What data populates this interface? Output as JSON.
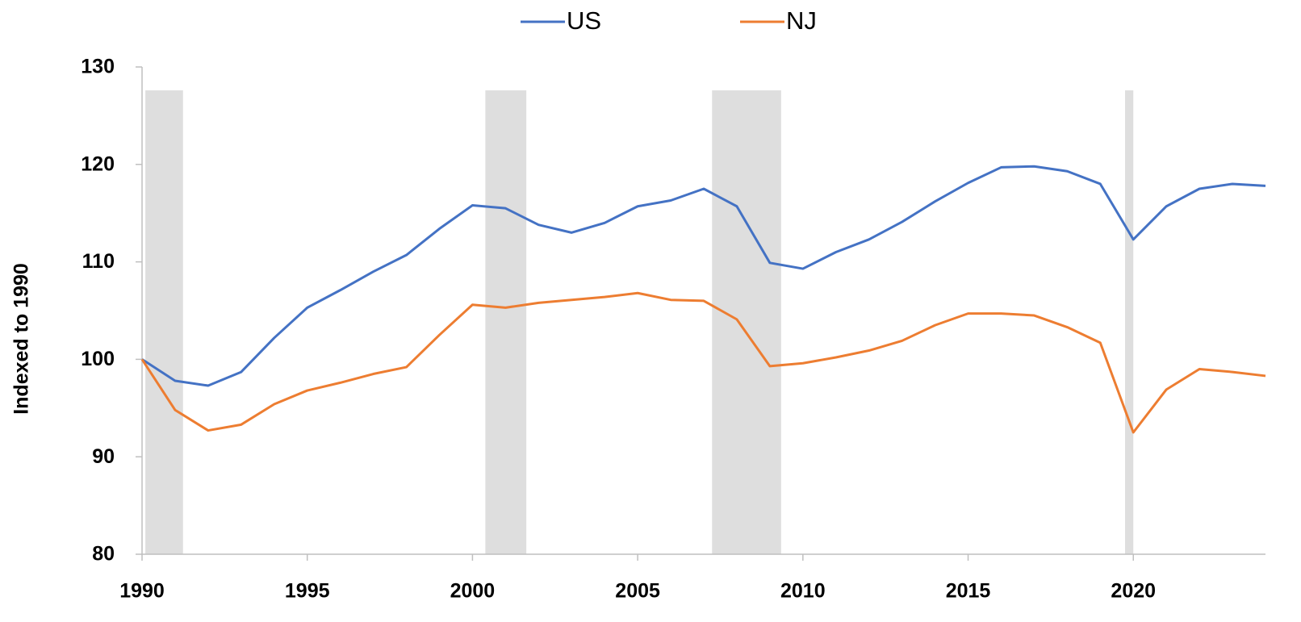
{
  "chart_data": {
    "type": "line",
    "ylabel": "Indexed to 1990",
    "x": [
      1990,
      1991,
      1992,
      1993,
      1994,
      1995,
      1996,
      1997,
      1998,
      1999,
      2000,
      2001,
      2002,
      2003,
      2004,
      2005,
      2006,
      2007,
      2008,
      2009,
      2010,
      2011,
      2012,
      2013,
      2014,
      2015,
      2016,
      2017,
      2018,
      2019,
      2020,
      2021,
      2022,
      2023,
      2024
    ],
    "series": [
      {
        "name": "US",
        "color": "#4472c4",
        "values": [
          100,
          97.8,
          97.3,
          98.7,
          102.2,
          105.3,
          107.1,
          109.0,
          110.7,
          113.4,
          115.8,
          115.5,
          113.8,
          113.0,
          114.0,
          115.7,
          116.3,
          117.5,
          115.7,
          109.9,
          109.3,
          111.0,
          112.3,
          114.1,
          116.2,
          118.1,
          119.7,
          119.8,
          119.3,
          118.0,
          112.3,
          115.7,
          117.5,
          118.0,
          117.8
        ]
      },
      {
        "name": "NJ",
        "color": "#ed7d31",
        "values": [
          100,
          94.8,
          92.7,
          93.3,
          95.4,
          96.8,
          97.6,
          98.5,
          99.2,
          102.5,
          105.6,
          105.3,
          105.8,
          106.1,
          106.4,
          106.8,
          106.1,
          106.0,
          104.1,
          99.3,
          99.6,
          100.2,
          100.9,
          101.9,
          103.5,
          104.7,
          104.7,
          104.5,
          103.3,
          101.7,
          92.5,
          96.9,
          99.0,
          98.7,
          98.3
        ]
      }
    ],
    "recessions": [
      [
        1990.1,
        1991.24
      ],
      [
        2000.39,
        2001.63
      ],
      [
        2007.25,
        2009.34
      ],
      [
        2019.75,
        2020.0
      ]
    ],
    "recession_color": "#dedede",
    "xlim": [
      1990,
      2024
    ],
    "xticks": [
      1990,
      1995,
      2000,
      2005,
      2010,
      2015,
      2020
    ],
    "ylim": [
      80,
      130
    ],
    "yticks": [
      80,
      90,
      100,
      110,
      120,
      130
    ],
    "legend": "top"
  }
}
